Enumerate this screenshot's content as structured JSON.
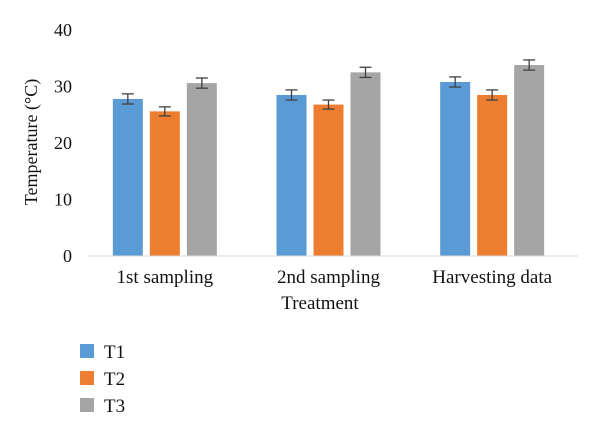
{
  "chart_data": {
    "type": "bar",
    "categories": [
      "1st sampling",
      "2nd sampling",
      "Harvesting data"
    ],
    "xlabel": "Treatment",
    "ylabel": "Temperature (°C)",
    "ylim": [
      0,
      40
    ],
    "yticks": [
      0,
      10,
      20,
      30,
      40
    ],
    "grid": false,
    "legend_position": "bottom-left",
    "series": [
      {
        "name": "T1",
        "color": "#5B9BD5",
        "values": [
          27.8,
          28.5,
          30.8
        ],
        "errors": [
          0.9,
          0.9,
          0.9
        ]
      },
      {
        "name": "T2",
        "color": "#ED7D31",
        "values": [
          25.6,
          26.8,
          28.5
        ],
        "errors": [
          0.8,
          0.8,
          0.9
        ]
      },
      {
        "name": "T3",
        "color": "#A5A5A5",
        "values": [
          30.6,
          32.5,
          33.8
        ],
        "errors": [
          0.9,
          0.9,
          0.9
        ]
      }
    ]
  }
}
